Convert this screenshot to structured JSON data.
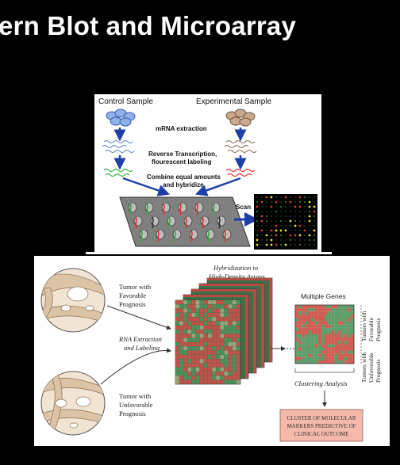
{
  "slide": {
    "title": "ern Blot and Microarray"
  },
  "microarray_workflow": {
    "control_label": "Control Sample",
    "experimental_label": "Experimental Sample",
    "step1": "mRNA extraction",
    "step2_line1": "Reverse Transcription,",
    "step2_line2": "flourescent labeling",
    "step3_line1": "Combine equal amounts",
    "step3_line2": "and hybridize",
    "scan_label": "Scan"
  },
  "clustering_figure": {
    "tumor_favorable_line1": "Tumor with",
    "tumor_favorable_line2": "Favorable",
    "tumor_favorable_line3": "Prognosis",
    "tumor_unfavorable_line1": "Tumor with",
    "tumor_unfavorable_line2": "Unfavorable",
    "tumor_unfavorable_line3": "Prognosis",
    "hybridization_line1": "Hybridization to",
    "hybridization_line2": "High-Density Arrays",
    "rna_line1": "RNA Extraction",
    "rna_line2": "and Labeling",
    "multiple_genes": "Multiple Genes",
    "clustering_analysis": "Clustering Analysis",
    "side_unfav_1": "Tumors with",
    "side_unfav_2": "Unfavorable",
    "side_unfav_3": "Prognosis",
    "side_fav_1": "Tumors with",
    "side_fav_2": "Favorable",
    "side_fav_3": "Prognosis",
    "outcome_line1": "CLUSTER OF MOLECULAR",
    "outcome_line2": "MARKERS PREDICTIVE OF",
    "outcome_line3": "CLINICAL OUTCOME"
  },
  "colors": {
    "background": "#000000",
    "red_probe": "#e0302a",
    "green_probe": "#2fae3c",
    "arrow_blue": "#1f3fa8",
    "outcome_box": "#f4b9ab"
  }
}
